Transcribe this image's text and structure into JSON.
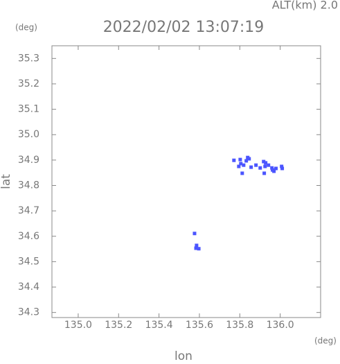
{
  "chart_data": {
    "type": "scatter",
    "title": "2022/02/02 13:07:19",
    "subtitle": "ALT(km) 2.0",
    "x_label": "lon",
    "y_label": "lat",
    "x_unit": "(deg)",
    "y_unit": "(deg)",
    "xlim": [
      134.87,
      136.2
    ],
    "ylim": [
      34.28,
      35.35
    ],
    "xticks": [
      {
        "value": 135,
        "label": "135.0"
      },
      135.2,
      135.4,
      135.6,
      135.8,
      {
        "value": 136,
        "label": "136.0"
      }
    ],
    "yticks": [
      34.3,
      34.4,
      34.5,
      34.6,
      34.7,
      34.8,
      34.9,
      {
        "value": 35,
        "label": "35.0"
      },
      35.1,
      35.2,
      35.3
    ],
    "color": "#4b55ff",
    "x": [
      135.771,
      135.802,
      135.805,
      135.795,
      135.839,
      135.846,
      135.832,
      135.819,
      135.856,
      135.88,
      135.901,
      135.918,
      135.928,
      135.925,
      135.942,
      135.959,
      135.969,
      135.962,
      135.979,
      136.007,
      136.01,
      135.812,
      135.921,
      135.576,
      135.586,
      135.597,
      135.583
    ],
    "values": [
      34.899,
      34.902,
      34.886,
      34.875,
      34.91,
      34.905,
      34.897,
      34.88,
      34.872,
      34.88,
      34.869,
      34.894,
      34.889,
      34.875,
      34.88,
      34.869,
      34.856,
      34.861,
      34.867,
      34.875,
      34.867,
      34.848,
      34.848,
      34.611,
      34.564,
      34.551,
      34.553
    ]
  }
}
